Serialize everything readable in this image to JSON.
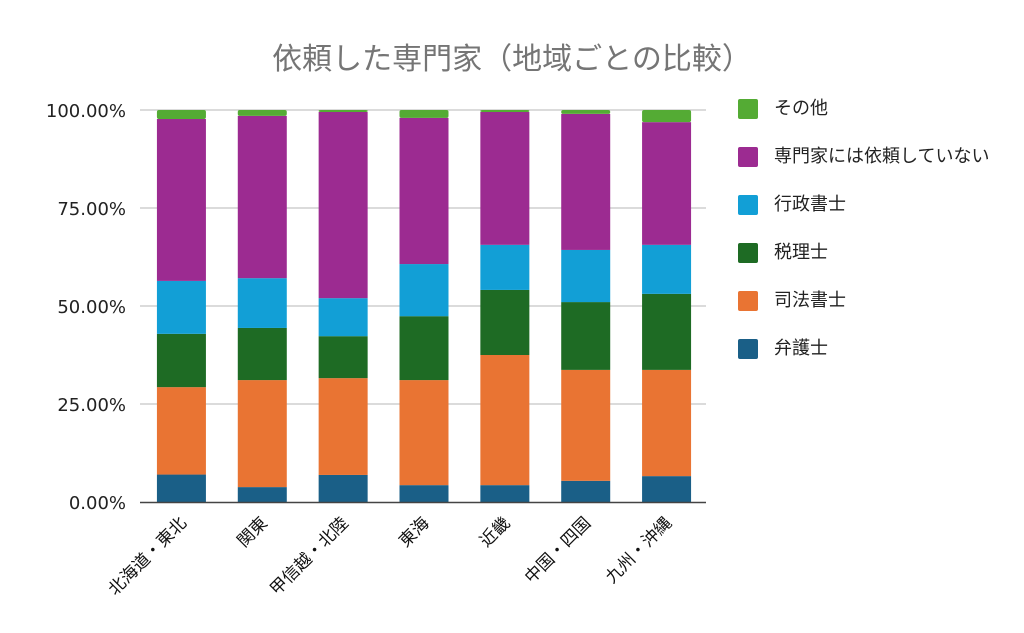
{
  "chart_data": {
    "type": "bar",
    "stacked": true,
    "title": "依頼した専門家（地域ごとの比較）",
    "xlabel": "",
    "ylabel": "",
    "ylim": [
      0,
      100
    ],
    "yticks": [
      "0.00%",
      "25.00%",
      "50.00%",
      "75.00%",
      "100.00%"
    ],
    "ytick_values": [
      0,
      25,
      50,
      75,
      100
    ],
    "grid": true,
    "legend_position": "right",
    "categories": [
      "北海道・東北",
      "関東",
      "甲信越・北陸",
      "東海",
      "近畿",
      "中国・四国",
      "九州・沖縄"
    ],
    "series": [
      {
        "name": "弁護士",
        "color": "#1a5f87",
        "values": [
          7.0,
          3.8,
          6.9,
          4.3,
          4.3,
          5.4,
          6.6
        ]
      },
      {
        "name": "司法書士",
        "color": "#e97433",
        "values": [
          22.3,
          27.3,
          24.7,
          26.8,
          33.2,
          28.3,
          27.1
        ]
      },
      {
        "name": "税理士",
        "color": "#1e6b24",
        "values": [
          13.6,
          13.3,
          10.7,
          16.3,
          16.6,
          17.3,
          19.4
        ]
      },
      {
        "name": "行政書士",
        "color": "#129fd6",
        "values": [
          13.5,
          12.7,
          9.7,
          13.3,
          11.5,
          13.3,
          12.5
        ]
      },
      {
        "name": "専門家には依頼していない",
        "color": "#9c2b91",
        "values": [
          41.3,
          41.4,
          47.5,
          37.3,
          33.9,
          34.7,
          31.3
        ]
      },
      {
        "name": "その他",
        "color": "#54ab34",
        "values": [
          2.3,
          1.5,
          0.5,
          2.0,
          0.5,
          1.0,
          3.1
        ]
      }
    ]
  },
  "legend": {
    "items": [
      {
        "label": "その他",
        "color": "#54ab34"
      },
      {
        "label": "専門家には依頼していない",
        "color": "#9c2b91"
      },
      {
        "label": "行政書士",
        "color": "#129fd6"
      },
      {
        "label": "税理士",
        "color": "#1e6b24"
      },
      {
        "label": "司法書士",
        "color": "#e97433"
      },
      {
        "label": "弁護士",
        "color": "#1a5f87"
      }
    ]
  }
}
